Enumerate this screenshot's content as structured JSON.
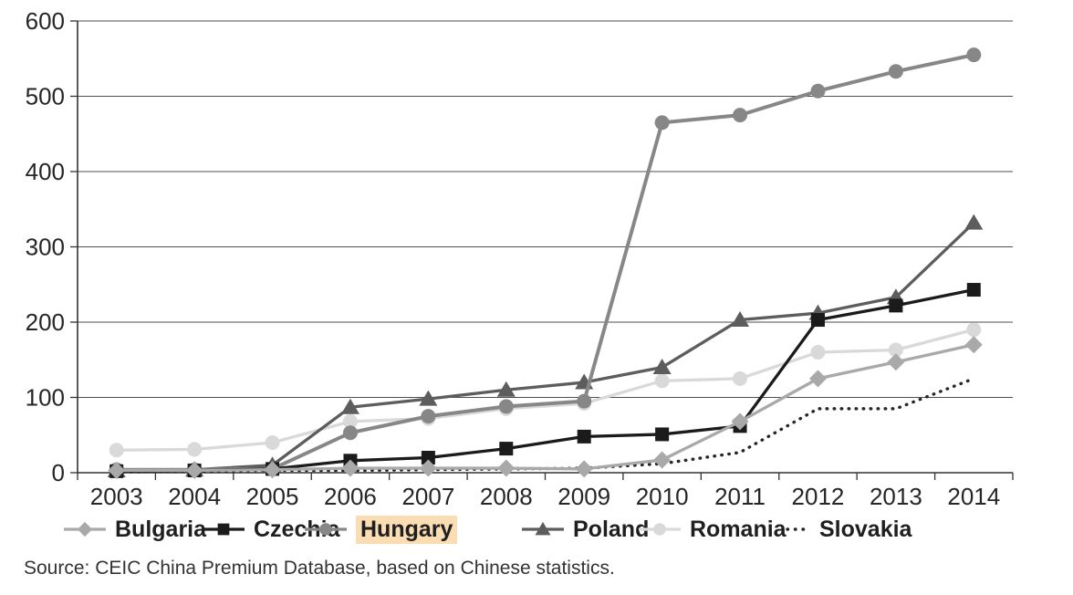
{
  "figure": {
    "source_note": "Source: CEIC China Premium Database, based on Chinese statistics.",
    "highlighted_term": "Hungary",
    "highlight_color": "#fbddb4"
  },
  "chart_data": {
    "type": "line",
    "title": "",
    "xlabel": "",
    "ylabel": "",
    "categories": [
      "2003",
      "2004",
      "2005",
      "2006",
      "2007",
      "2008",
      "2009",
      "2010",
      "2011",
      "2012",
      "2013",
      "2014"
    ],
    "ylim": [
      0,
      600
    ],
    "ytick_step": 100,
    "yticks": [
      "0",
      "100",
      "200",
      "300",
      "400",
      "500",
      "600"
    ],
    "grid": true,
    "legend_position": "bottom",
    "series": [
      {
        "name": "Bulgaria",
        "marker": "diamond",
        "line": "solid",
        "color": "#a9a9a9",
        "values": [
          3,
          3,
          4,
          6,
          6,
          6,
          5,
          17,
          68,
          125,
          147,
          170
        ]
      },
      {
        "name": "Czechia",
        "marker": "square",
        "line": "solid",
        "color": "#1b1b1b",
        "values": [
          2,
          3,
          5,
          16,
          20,
          32,
          48,
          51,
          62,
          203,
          222,
          243
        ]
      },
      {
        "name": "Hungary",
        "marker": "circle",
        "line": "solid",
        "color": "#878787",
        "values": [
          4,
          4,
          5,
          53,
          75,
          88,
          95,
          465,
          475,
          507,
          533,
          555
        ],
        "highlighted": true
      },
      {
        "name": "Poland",
        "marker": "triangle",
        "line": "solid",
        "color": "#5d5d5d",
        "values": [
          3,
          4,
          10,
          87,
          98,
          110,
          120,
          140,
          203,
          212,
          233,
          332
        ]
      },
      {
        "name": "Romania",
        "marker": "circle",
        "line": "solid",
        "color": "#d9d9d9",
        "values": [
          30,
          31,
          40,
          68,
          72,
          85,
          92,
          122,
          125,
          160,
          163,
          190
        ]
      },
      {
        "name": "Slovakia",
        "marker": "none",
        "line": "dotted",
        "color": "#262626",
        "values": [
          1,
          2,
          3,
          3,
          4,
          5,
          6,
          12,
          27,
          85,
          85,
          125
        ]
      }
    ]
  }
}
